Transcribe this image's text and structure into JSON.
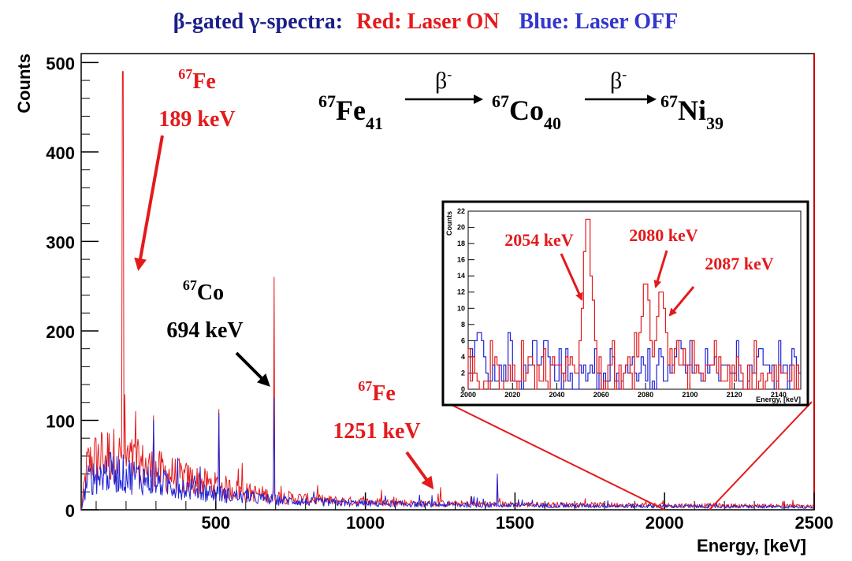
{
  "header": {
    "prefix": "β-gated γ-spectra:",
    "red_label": "Red: Laser ON",
    "blue_label": "Blue: Laser OFF"
  },
  "colors": {
    "on": "#e41a1c",
    "off": "#1f22d6",
    "axis": "#000000",
    "frame_right": "#cc0000"
  },
  "decay_chain": {
    "step1": {
      "mass": "67",
      "symbol": "Fe",
      "sub": "41"
    },
    "arrow1": "β",
    "arrow1_sup": "-",
    "step2": {
      "mass": "67",
      "symbol": "Co",
      "sub": "40"
    },
    "arrow2": "β",
    "arrow2_sup": "-",
    "step3": {
      "mass": "67",
      "symbol": "Ni",
      "sub": "39"
    }
  },
  "annotations": {
    "fe189": {
      "mass": "67",
      "symbol": "Fe",
      "energy": "189 keV"
    },
    "co694": {
      "mass": "67",
      "symbol": "Co",
      "energy": "694 keV"
    },
    "fe1251": {
      "mass": "67",
      "symbol": "Fe",
      "energy": "1251 keV"
    }
  },
  "chart_data": [
    {
      "type": "line",
      "xlabel": "Energy, [keV]",
      "ylabel": "Counts",
      "xlim": [
        50,
        2500
      ],
      "ylim": [
        0,
        510
      ],
      "x_ticks": [
        500,
        1000,
        1500,
        2000,
        2500
      ],
      "y_ticks": [
        0,
        100,
        200,
        300,
        400,
        500
      ],
      "series": [
        {
          "name": "Red: Laser ON",
          "background": [
            [
              50,
              0
            ],
            [
              70,
              50
            ],
            [
              100,
              58
            ],
            [
              150,
              62
            ],
            [
              190,
              56
            ],
            [
              250,
              50
            ],
            [
              300,
              44
            ],
            [
              400,
              35
            ],
            [
              500,
              27
            ],
            [
              600,
              20
            ],
            [
              700,
              15
            ],
            [
              800,
              12
            ],
            [
              900,
              10
            ],
            [
              1000,
              9
            ],
            [
              1200,
              7
            ],
            [
              1500,
              6
            ],
            [
              2000,
              5
            ],
            [
              2500,
              4
            ]
          ],
          "peaks": [
            [
              189,
              490
            ],
            [
              292,
              105
            ],
            [
              511,
              112
            ],
            [
              694,
              260
            ],
            [
              1251,
              25
            ],
            [
              1440,
              38
            ]
          ]
        },
        {
          "name": "Blue: Laser OFF",
          "background": [
            [
              50,
              0
            ],
            [
              70,
              32
            ],
            [
              100,
              38
            ],
            [
              150,
              42
            ],
            [
              190,
              40
            ],
            [
              250,
              36
            ],
            [
              300,
              31
            ],
            [
              400,
              24
            ],
            [
              500,
              18
            ],
            [
              600,
              14
            ],
            [
              700,
              11
            ],
            [
              800,
              9
            ],
            [
              900,
              8
            ],
            [
              1000,
              7
            ],
            [
              1200,
              6
            ],
            [
              1500,
              5
            ],
            [
              2000,
              4
            ],
            [
              2500,
              3
            ]
          ],
          "peaks": [
            [
              292,
              100
            ],
            [
              511,
              108
            ],
            [
              694,
              125
            ],
            [
              1440,
              40
            ]
          ]
        }
      ]
    },
    {
      "type": "line",
      "xlabel": "Energy, [keV]",
      "ylabel": "Counts",
      "xlim": [
        2000,
        2150
      ],
      "ylim": [
        0,
        22
      ],
      "x_ticks": [
        2000,
        2020,
        2040,
        2060,
        2080,
        2100,
        2120,
        2140
      ],
      "y_ticks": [
        0,
        2,
        4,
        6,
        8,
        10,
        12,
        14,
        16,
        18,
        20,
        22
      ],
      "series": [
        {
          "name": "Red: Laser ON",
          "background": 2.2,
          "peaks": [
            [
              2054,
              21
            ],
            [
              2080,
              13
            ],
            [
              2087,
              12
            ]
          ]
        },
        {
          "name": "Blue: Laser OFF",
          "background": 2,
          "peaks": [
            [
              2005,
              7
            ],
            [
              2035,
              6
            ],
            [
              2095,
              6
            ],
            [
              2132,
              5
            ]
          ]
        }
      ],
      "annotations": [
        "2054 keV",
        "2080 keV",
        "2087 keV"
      ]
    }
  ]
}
